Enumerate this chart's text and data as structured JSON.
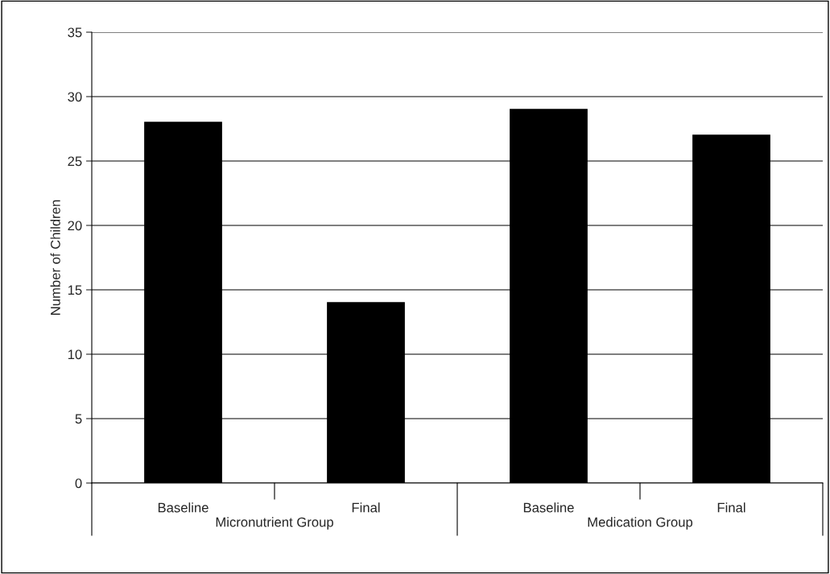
{
  "chart_data": {
    "type": "bar",
    "ylabel": "Number of Children",
    "categories": [
      "Baseline",
      "Final",
      "Baseline",
      "Final"
    ],
    "values": [
      28,
      14,
      29,
      27
    ],
    "color": "#000000",
    "annotations": [
      "Micronutrient Group",
      "Medication Group"
    ],
    "ylim": [
      0,
      35
    ],
    "yticks": [
      0,
      5,
      10,
      15,
      20,
      25,
      30,
      35
    ],
    "grid": "y"
  }
}
